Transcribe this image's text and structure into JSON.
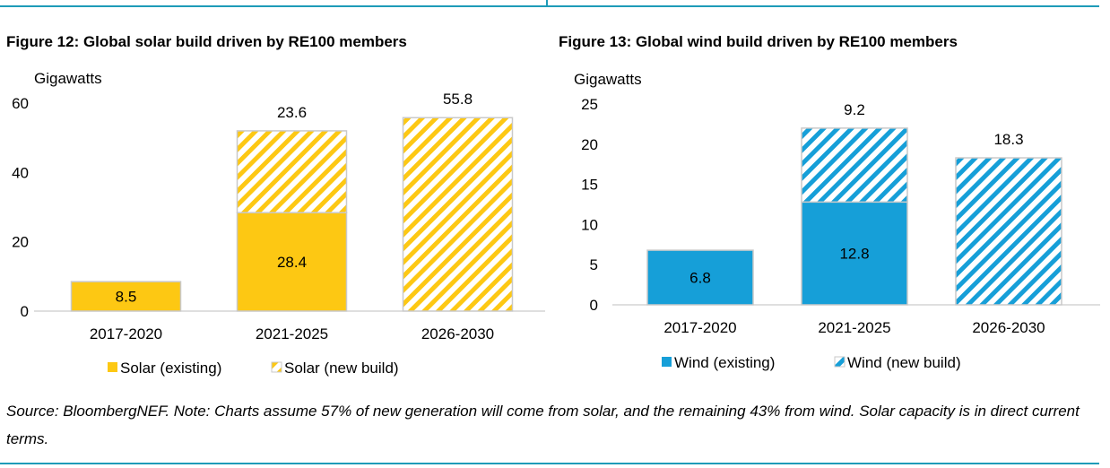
{
  "figures": [
    {
      "title": "Figure 12: Global solar build driven by RE100 members",
      "chart_data": {
        "type": "bar",
        "stacked": true,
        "title": "Figure 12: Global solar build driven by RE100 members",
        "ylabel": "Gigawatts",
        "ylim": [
          0,
          60
        ],
        "yticks": [
          0,
          20,
          40,
          60
        ],
        "categories": [
          "2017-2020",
          "2021-2025",
          "2026-2030"
        ],
        "series": [
          {
            "name": "Solar (existing)",
            "values": [
              8.5,
              28.4,
              0
            ],
            "style": "solid"
          },
          {
            "name": "Solar (new build)",
            "values": [
              0,
              23.6,
              55.8
            ],
            "style": "hatched"
          }
        ],
        "data_labels": [
          {
            "category": 0,
            "series": 0,
            "text": "8.5",
            "placement": "inside"
          },
          {
            "category": 1,
            "series": 0,
            "text": "28.4",
            "placement": "inside"
          },
          {
            "category": 1,
            "series": 1,
            "text": "23.6",
            "placement": "above"
          },
          {
            "category": 2,
            "series": 1,
            "text": "55.8",
            "placement": "above"
          }
        ],
        "legend": "bottom",
        "colors": {
          "fill": "#fdc813",
          "hatch": "#fdc813",
          "edge": "#c9c9c9"
        }
      }
    },
    {
      "title": "Figure 13: Global wind build driven by RE100 members",
      "chart_data": {
        "type": "bar",
        "stacked": true,
        "title": "Figure 13: Global wind build driven by RE100 members",
        "ylabel": "Gigawatts",
        "ylim": [
          0,
          25
        ],
        "yticks": [
          0,
          5,
          10,
          15,
          20,
          25
        ],
        "categories": [
          "2017-2020",
          "2021-2025",
          "2026-2030"
        ],
        "series": [
          {
            "name": "Wind (existing)",
            "values": [
              6.8,
              12.8,
              0
            ],
            "style": "solid"
          },
          {
            "name": "Wind (new build)",
            "values": [
              0,
              9.2,
              18.3
            ],
            "style": "hatched"
          }
        ],
        "data_labels": [
          {
            "category": 0,
            "series": 0,
            "text": "6.8",
            "placement": "inside"
          },
          {
            "category": 1,
            "series": 0,
            "text": "12.8",
            "placement": "inside"
          },
          {
            "category": 1,
            "series": 1,
            "text": "9.2",
            "placement": "above"
          },
          {
            "category": 2,
            "series": 1,
            "text": "18.3",
            "placement": "above"
          }
        ],
        "legend": "bottom",
        "colors": {
          "fill": "#169fd8",
          "hatch": "#169fd8",
          "edge": "#c9c9c9"
        }
      }
    }
  ],
  "source_note": "Source: BloombergNEF. Note: Charts assume 57% of new generation will come from solar, and the remaining 43% from wind. Solar capacity is in direct current terms."
}
